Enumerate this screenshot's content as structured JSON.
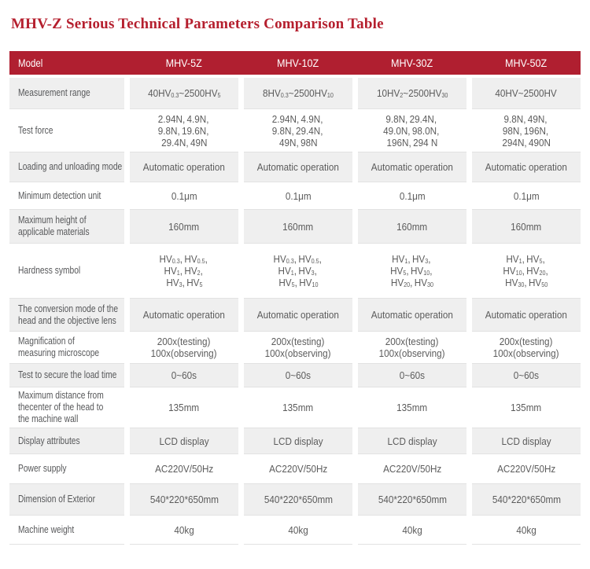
{
  "page": {
    "title": "MHV-Z Serious Technical Parameters Comparison Table"
  },
  "colors": {
    "title": "#b51f2e",
    "header_bg": "#b01f30",
    "header_text": "#ffffff",
    "row_alt_bg": "#efefef",
    "border": "#e2e2e2",
    "text": "#5b5b5b"
  },
  "table": {
    "header": {
      "cells": [
        "Model",
        "MHV-5Z",
        "MHV-10Z",
        "MHV-30Z",
        "MHV-50Z"
      ]
    },
    "rows": [
      {
        "label": "Measurement range",
        "values": [
          "40HV_{0.3}~2500HV_{5}",
          "8HV_{0.3}~2500HV_{10}",
          "10HV_{2}~2500HV_{30}",
          "40HV~2500HV"
        ]
      },
      {
        "label": "Test force",
        "values": [
          "2.94N、4.9N、\n9.8N、19.6N、\n29.4N、49N",
          "2.94N、4.9N、\n9.8N、29.4N、\n49N、98N",
          "9.8N、29.4N、\n49.0N、98.0N、\n196N、294 N",
          "9.8N、49N、\n98N、196N、\n294N、490N"
        ]
      },
      {
        "label": "Loading and unloading mode",
        "values": [
          "Automatic operation",
          "Automatic operation",
          "Automatic operation",
          "Automatic operation"
        ]
      },
      {
        "label": "Minimum detection unit",
        "values": [
          "0.1μm",
          "0.1μm",
          "0.1μm",
          "0.1μm"
        ]
      },
      {
        "label": "Maximum height of\napplicable materials",
        "values": [
          "160mm",
          "160mm",
          "160mm",
          "160mm"
        ]
      },
      {
        "label": "Hardness symbol",
        "values": [
          "HV_{0.3}、HV_{0.5}、\nHV_{1}、HV_{2}、\nHV_{3}、HV_{5}",
          "HV_{0.3}、HV_{0.5}、\nHV_{1}、HV_{3}、\nHV_{5}、HV_{10}",
          "HV_{1}、HV_{3}、\nHV_{5}、HV_{10}、\nHV_{20}、HV_{30}",
          "HV_{1}、HV_{5}、\nHV_{10}、HV_{20}、\nHV_{30}、HV_{50}"
        ]
      },
      {
        "label": "The conversion mode of the\nhead and the objective lens",
        "values": [
          "Automatic operation",
          "Automatic operation",
          "Automatic operation",
          "Automatic operation"
        ]
      },
      {
        "label": "Magnification of\nmeasuring microscope",
        "values": [
          "200x(testing)\n100x(observing)",
          "200x(testing)\n100x(observing)",
          "200x(testing)\n100x(observing)",
          "200x(testing)\n100x(observing)"
        ]
      },
      {
        "label": "Test to secure the load time",
        "values": [
          "0~60s",
          "0~60s",
          "0~60s",
          "0~60s"
        ]
      },
      {
        "label": "Maximum distance from\nthecenter of the head to\nthe machine wall",
        "values": [
          "135mm",
          "135mm",
          "135mm",
          "135mm"
        ]
      },
      {
        "label": "Display attributes",
        "values": [
          "LCD display",
          "LCD display",
          "LCD display",
          "LCD display"
        ]
      },
      {
        "label": "Power supply",
        "values": [
          "AC220V/50Hz",
          "AC220V/50Hz",
          "AC220V/50Hz",
          "AC220V/50Hz"
        ]
      },
      {
        "label": "Dimension of Exterior",
        "values": [
          "540*220*650mm",
          "540*220*650mm",
          "540*220*650mm",
          "540*220*650mm"
        ]
      },
      {
        "label": "Machine weight",
        "values": [
          "40kg",
          "40kg",
          "40kg",
          "40kg"
        ]
      }
    ]
  }
}
